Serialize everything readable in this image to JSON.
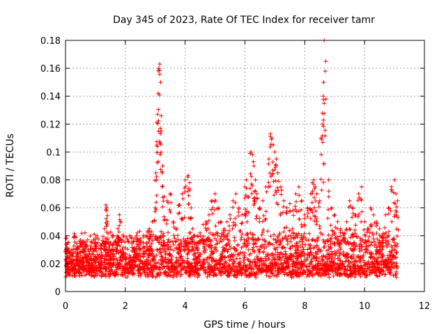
{
  "chart_data": {
    "type": "scatter",
    "title": "Day 345 of 2023, Rate Of TEC Index for receiver tamr",
    "xlabel": "GPS time / hours",
    "ylabel": "ROTI / TECUs",
    "xlim": [
      0,
      12
    ],
    "ylim": [
      0,
      0.18
    ],
    "xticks": [
      0,
      2,
      4,
      6,
      8,
      10,
      12
    ],
    "xtick_labels": [
      "0",
      "2",
      "4",
      "6",
      "8",
      "10",
      "12"
    ],
    "yticks": [
      0,
      0.02,
      0.04,
      0.06,
      0.08,
      0.1,
      0.12,
      0.14,
      0.16,
      0.18
    ],
    "ytick_labels": [
      "0",
      "0.02",
      "0.04",
      "0.06",
      "0.08",
      "0.1",
      "0.12",
      "0.14",
      "0.16",
      "0.18"
    ],
    "grid": true,
    "marker": "+",
    "series": [
      {
        "name": "ROTI",
        "color": "#ff0000",
        "x": [
          0.02,
          0.05,
          0.08,
          0.1,
          0.15,
          0.2,
          0.25,
          0.3,
          0.35,
          0.4,
          0.45,
          0.5,
          0.55,
          0.6,
          0.65,
          0.7,
          0.75,
          0.8,
          0.85,
          0.9,
          0.95,
          1.0,
          1.1,
          1.2,
          1.3,
          1.35,
          1.38,
          1.4,
          1.45,
          1.5,
          1.6,
          1.7,
          1.75,
          1.8,
          1.85,
          1.9,
          2.0,
          2.1,
          2.2,
          2.3,
          2.4,
          2.5,
          2.6,
          2.7,
          2.8,
          2.9,
          3.0,
          3.02,
          3.05,
          3.08,
          3.1,
          3.12,
          3.15,
          3.18,
          3.2,
          3.25,
          3.3,
          3.4,
          3.5,
          3.6,
          3.7,
          3.8,
          3.9,
          4.0,
          4.1,
          4.15,
          4.2,
          4.25,
          4.3,
          4.4,
          4.5,
          4.6,
          4.7,
          4.8,
          4.9,
          5.0,
          5.1,
          5.2,
          5.3,
          5.4,
          5.5,
          5.6,
          5.7,
          5.8,
          5.9,
          6.0,
          6.05,
          6.1,
          6.2,
          6.25,
          6.3,
          6.35,
          6.4,
          6.5,
          6.6,
          6.7,
          6.8,
          6.85,
          6.9,
          6.95,
          7.0,
          7.05,
          7.1,
          7.2,
          7.3,
          7.4,
          7.5,
          7.6,
          7.7,
          7.8,
          7.9,
          8.0,
          8.1,
          8.2,
          8.25,
          8.3,
          8.35,
          8.4,
          8.5,
          8.55,
          8.6,
          8.62,
          8.65,
          8.7,
          8.8,
          8.9,
          9.0,
          9.1,
          9.2,
          9.3,
          9.4,
          9.5,
          9.6,
          9.7,
          9.8,
          9.9,
          10.0,
          10.1,
          10.2,
          10.3,
          10.4,
          10.5,
          10.6,
          10.7,
          10.8,
          10.9,
          11.0,
          11.05,
          11.1
        ],
        "y": [
          0.03,
          0.025,
          0.035,
          0.02,
          0.028,
          0.022,
          0.03,
          0.018,
          0.025,
          0.032,
          0.02,
          0.028,
          0.035,
          0.022,
          0.042,
          0.025,
          0.03,
          0.02,
          0.025,
          0.018,
          0.03,
          0.035,
          0.025,
          0.028,
          0.045,
          0.062,
          0.06,
          0.05,
          0.03,
          0.025,
          0.04,
          0.035,
          0.045,
          0.055,
          0.05,
          0.03,
          0.025,
          0.02,
          0.022,
          0.03,
          0.042,
          0.038,
          0.035,
          0.04,
          0.045,
          0.05,
          0.06,
          0.085,
          0.105,
          0.127,
          0.142,
          0.16,
          0.163,
          0.15,
          0.115,
          0.09,
          0.068,
          0.065,
          0.07,
          0.05,
          0.045,
          0.062,
          0.07,
          0.08,
          0.083,
          0.078,
          0.06,
          0.045,
          0.04,
          0.035,
          0.042,
          0.048,
          0.05,
          0.055,
          0.065,
          0.07,
          0.06,
          0.05,
          0.045,
          0.05,
          0.055,
          0.065,
          0.07,
          0.06,
          0.055,
          0.075,
          0.08,
          0.068,
          0.1,
          0.098,
          0.09,
          0.08,
          0.07,
          0.06,
          0.065,
          0.075,
          0.095,
          0.113,
          0.11,
          0.105,
          0.1,
          0.095,
          0.085,
          0.075,
          0.065,
          0.06,
          0.063,
          0.058,
          0.07,
          0.075,
          0.065,
          0.055,
          0.06,
          0.07,
          0.078,
          0.08,
          0.075,
          0.07,
          0.065,
          0.11,
          0.12,
          0.14,
          0.18,
          0.165,
          0.08,
          0.06,
          0.055,
          0.05,
          0.045,
          0.04,
          0.05,
          0.065,
          0.06,
          0.055,
          0.07,
          0.075,
          0.05,
          0.045,
          0.06,
          0.055,
          0.05,
          0.045,
          0.04,
          0.055,
          0.06,
          0.075,
          0.08,
          0.07,
          0.065
        ],
        "bulk_band": [
          0.01,
          0.04
        ]
      }
    ]
  }
}
